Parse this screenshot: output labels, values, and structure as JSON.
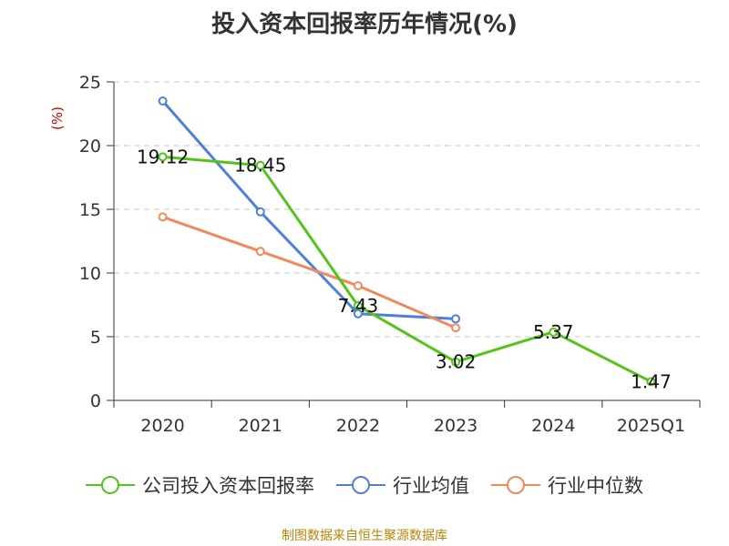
{
  "chart_data": {
    "type": "line",
    "title": "投入资本回报率历年情况(%)",
    "ylabel": "(%)",
    "xlabel": "",
    "categories": [
      "2020",
      "2021",
      "2022",
      "2023",
      "2024",
      "2025Q1"
    ],
    "ylim": [
      0,
      25
    ],
    "yticks": [
      0,
      5,
      10,
      15,
      20,
      25
    ],
    "grid": "horizontal dashed",
    "legend_position": "bottom",
    "series": [
      {
        "name": "公司投入资本回报率",
        "color": "#52c41a",
        "values": [
          19.12,
          18.45,
          7.43,
          3.02,
          5.37,
          1.47
        ],
        "labels": [
          "19.12",
          "18.45",
          "7.43",
          "3.02",
          "5.37",
          "1.47"
        ]
      },
      {
        "name": "行业均值",
        "color": "#4e7fd9",
        "values": [
          23.5,
          14.8,
          6.8,
          6.4,
          null,
          null
        ]
      },
      {
        "name": "行业中位数",
        "color": "#f08a5d",
        "values": [
          14.4,
          11.7,
          9.0,
          5.7,
          null,
          null
        ]
      }
    ]
  },
  "source": "制图数据来自恒生聚源数据库"
}
